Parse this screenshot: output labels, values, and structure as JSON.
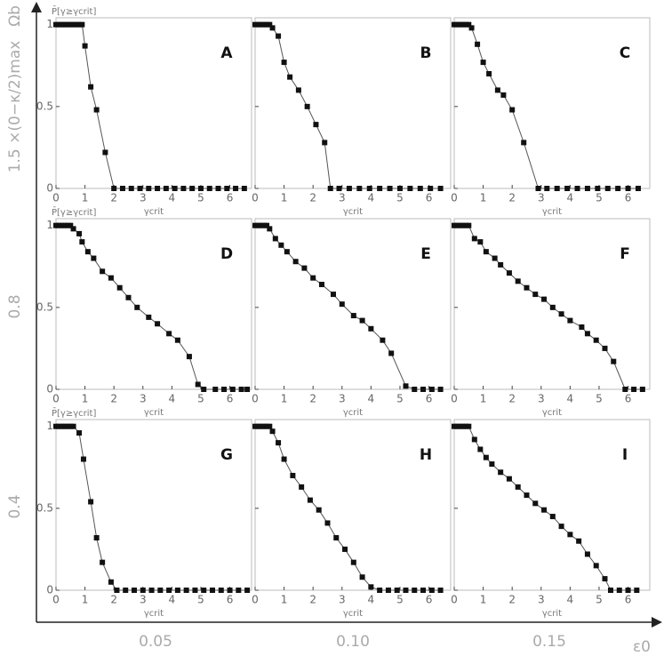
{
  "figure": {
    "y_label": "Ωb",
    "x_label": "ε0",
    "row_labels": [
      "1.5 ×(0−κ/2)max",
      "0.8",
      "0.4"
    ],
    "column_labels": [
      "0.05",
      "0.10",
      "0.15"
    ]
  },
  "chart_data": [
    {
      "type": "line",
      "label": "A",
      "y_label": "P̄[γ≥γcrit]",
      "x_label": "γcrit",
      "color": "#111111",
      "x": [
        0,
        0.1,
        0.2,
        0.3,
        0.4,
        0.5,
        0.6,
        0.7,
        0.8,
        0.9,
        1.0,
        1.2,
        1.4,
        1.7,
        2.0,
        2.3,
        2.6,
        2.9,
        3.2,
        3.5,
        3.8,
        4.1,
        4.4,
        4.7,
        5.0,
        5.3,
        5.6,
        5.9,
        6.2,
        6.5
      ],
      "values": [
        1,
        1,
        1,
        1,
        1,
        1,
        1,
        1,
        1,
        1,
        0.87,
        0.62,
        0.48,
        0.22,
        0,
        0,
        0,
        0,
        0,
        0,
        0,
        0,
        0,
        0,
        0,
        0,
        0,
        0,
        0,
        0
      ],
      "xlim": [
        0,
        6.75
      ],
      "ylim": [
        0,
        1.02
      ],
      "xticks": [
        0,
        1,
        2,
        3,
        4,
        5,
        6
      ],
      "yticks": [
        0,
        0.5,
        1
      ]
    },
    {
      "type": "line",
      "label": "B",
      "x_label": "γcrit",
      "color": "#111111",
      "x": [
        0,
        0.1,
        0.2,
        0.3,
        0.4,
        0.5,
        0.6,
        0.8,
        1.0,
        1.2,
        1.5,
        1.8,
        2.1,
        2.4,
        2.6,
        2.9,
        3.25,
        3.6,
        3.95,
        4.3,
        4.65,
        5.0,
        5.35,
        5.7,
        6.05,
        6.4
      ],
      "values": [
        1,
        1,
        1,
        1,
        1,
        1,
        0.98,
        0.93,
        0.77,
        0.68,
        0.6,
        0.5,
        0.39,
        0.28,
        0,
        0,
        0,
        0,
        0,
        0,
        0,
        0,
        0,
        0,
        0,
        0
      ],
      "xlim": [
        0,
        6.75
      ],
      "ylim": [
        0,
        1.02
      ],
      "xticks": [
        0,
        1,
        2,
        3,
        4,
        5,
        6
      ],
      "yticks": [
        0,
        0.5,
        1
      ]
    },
    {
      "type": "line",
      "label": "C",
      "x_label": "γcrit",
      "color": "#111111",
      "x": [
        0,
        0.1,
        0.2,
        0.3,
        0.4,
        0.5,
        0.6,
        0.8,
        1.0,
        1.2,
        1.5,
        1.7,
        2.0,
        2.4,
        2.9,
        3.2,
        3.55,
        3.9,
        4.25,
        4.6,
        4.95,
        5.3,
        5.65,
        6.0,
        6.35
      ],
      "values": [
        1,
        1,
        1,
        1,
        1,
        1,
        0.98,
        0.88,
        0.77,
        0.7,
        0.6,
        0.57,
        0.48,
        0.28,
        0,
        0,
        0,
        0,
        0,
        0,
        0,
        0,
        0,
        0,
        0
      ],
      "xlim": [
        0,
        6.75
      ],
      "ylim": [
        0,
        1.02
      ],
      "xticks": [
        0,
        1,
        2,
        3,
        4,
        5,
        6
      ],
      "yticks": [
        0,
        0.5,
        1
      ]
    },
    {
      "type": "line",
      "label": "D",
      "y_label": "P̄[γ≥γcrit]",
      "x_label": "γcrit",
      "color": "#111111",
      "x": [
        0,
        0.1,
        0.2,
        0.3,
        0.4,
        0.5,
        0.6,
        0.8,
        0.9,
        1.1,
        1.3,
        1.6,
        1.9,
        2.2,
        2.5,
        2.8,
        3.2,
        3.5,
        3.9,
        4.2,
        4.6,
        4.9,
        5.1,
        5.5,
        5.8,
        6.1,
        6.4,
        6.6
      ],
      "values": [
        1,
        1,
        1,
        1,
        1,
        1,
        0.98,
        0.95,
        0.9,
        0.84,
        0.8,
        0.72,
        0.68,
        0.62,
        0.56,
        0.5,
        0.44,
        0.4,
        0.34,
        0.3,
        0.2,
        0.03,
        0,
        0,
        0,
        0,
        0,
        0
      ],
      "xlim": [
        0,
        6.75
      ],
      "ylim": [
        0,
        1.02
      ],
      "xticks": [
        0,
        1,
        2,
        3,
        4,
        5,
        6
      ],
      "yticks": [
        0,
        0.5,
        1
      ]
    },
    {
      "type": "line",
      "label": "E",
      "x_label": "γcrit",
      "color": "#111111",
      "x": [
        0,
        0.1,
        0.2,
        0.3,
        0.4,
        0.5,
        0.7,
        0.9,
        1.1,
        1.4,
        1.7,
        2.0,
        2.3,
        2.7,
        3.0,
        3.4,
        3.7,
        4.0,
        4.4,
        4.7,
        5.2,
        5.5,
        5.8,
        6.1,
        6.4
      ],
      "values": [
        1,
        1,
        1,
        1,
        1,
        0.98,
        0.92,
        0.88,
        0.84,
        0.78,
        0.74,
        0.68,
        0.64,
        0.58,
        0.52,
        0.45,
        0.42,
        0.37,
        0.3,
        0.22,
        0.02,
        0,
        0,
        0,
        0
      ],
      "xlim": [
        0,
        6.75
      ],
      "ylim": [
        0,
        1.02
      ],
      "xticks": [
        0,
        1,
        2,
        3,
        4,
        5,
        6
      ],
      "yticks": [
        0,
        0.5,
        1
      ]
    },
    {
      "type": "line",
      "label": "F",
      "x_label": "γcrit",
      "color": "#111111",
      "x": [
        0,
        0.1,
        0.2,
        0.3,
        0.4,
        0.5,
        0.7,
        0.9,
        1.1,
        1.4,
        1.6,
        1.9,
        2.2,
        2.5,
        2.8,
        3.1,
        3.4,
        3.7,
        4.0,
        4.4,
        4.6,
        4.9,
        5.2,
        5.5,
        5.9,
        6.2,
        6.5
      ],
      "values": [
        1,
        1,
        1,
        1,
        1,
        1,
        0.92,
        0.9,
        0.84,
        0.8,
        0.76,
        0.71,
        0.66,
        0.62,
        0.58,
        0.55,
        0.5,
        0.46,
        0.42,
        0.38,
        0.34,
        0.3,
        0.25,
        0.17,
        0,
        0,
        0
      ],
      "xlim": [
        0,
        6.75
      ],
      "ylim": [
        0,
        1.02
      ],
      "xticks": [
        0,
        1,
        2,
        3,
        4,
        5,
        6
      ],
      "yticks": [
        0,
        0.5,
        1
      ]
    },
    {
      "type": "line",
      "label": "G",
      "y_label": "P̄[γ≥γcrit]",
      "x_label": "γcrit",
      "color": "#111111",
      "x": [
        0,
        0.1,
        0.2,
        0.3,
        0.4,
        0.5,
        0.6,
        0.8,
        0.95,
        1.2,
        1.4,
        1.6,
        1.9,
        2.1,
        2.4,
        2.7,
        3.0,
        3.3,
        3.6,
        3.9,
        4.2,
        4.5,
        4.8,
        5.1,
        5.4,
        5.7,
        6.0,
        6.3,
        6.6
      ],
      "values": [
        1,
        1,
        1,
        1,
        1,
        1,
        1,
        0.96,
        0.8,
        0.54,
        0.32,
        0.17,
        0.05,
        0,
        0,
        0,
        0,
        0,
        0,
        0,
        0,
        0,
        0,
        0,
        0,
        0,
        0,
        0,
        0
      ],
      "xlim": [
        0,
        6.75
      ],
      "ylim": [
        0,
        1.02
      ],
      "xticks": [
        0,
        1,
        2,
        3,
        4,
        5,
        6
      ],
      "yticks": [
        0,
        0.5,
        1
      ]
    },
    {
      "type": "line",
      "label": "H",
      "x_label": "γcrit",
      "color": "#111111",
      "x": [
        0,
        0.1,
        0.2,
        0.3,
        0.4,
        0.5,
        0.6,
        0.8,
        1.0,
        1.3,
        1.6,
        1.9,
        2.2,
        2.5,
        2.8,
        3.1,
        3.4,
        3.7,
        4.0,
        4.3,
        4.6,
        4.9,
        5.2,
        5.5,
        5.8,
        6.1,
        6.4
      ],
      "values": [
        1,
        1,
        1,
        1,
        1,
        1,
        0.97,
        0.9,
        0.8,
        0.7,
        0.63,
        0.55,
        0.49,
        0.41,
        0.32,
        0.25,
        0.17,
        0.08,
        0.02,
        0,
        0,
        0,
        0,
        0,
        0,
        0,
        0
      ],
      "xlim": [
        0,
        6.75
      ],
      "ylim": [
        0,
        1.02
      ],
      "xticks": [
        0,
        1,
        2,
        3,
        4,
        5,
        6
      ],
      "yticks": [
        0,
        0.5,
        1
      ]
    },
    {
      "type": "line",
      "label": "I",
      "x_label": "γcrit",
      "color": "#111111",
      "x": [
        0,
        0.1,
        0.2,
        0.3,
        0.4,
        0.5,
        0.7,
        0.9,
        1.1,
        1.3,
        1.6,
        1.9,
        2.2,
        2.5,
        2.8,
        3.1,
        3.4,
        3.7,
        4.0,
        4.3,
        4.6,
        4.9,
        5.2,
        5.4,
        5.7,
        6.0,
        6.3
      ],
      "values": [
        1,
        1,
        1,
        1,
        1,
        1,
        0.92,
        0.86,
        0.81,
        0.77,
        0.72,
        0.68,
        0.63,
        0.58,
        0.53,
        0.49,
        0.45,
        0.39,
        0.34,
        0.3,
        0.22,
        0.15,
        0.07,
        0,
        0,
        0,
        0
      ],
      "xlim": [
        0,
        6.75
      ],
      "ylim": [
        0,
        1.02
      ],
      "xticks": [
        0,
        1,
        2,
        3,
        4,
        5,
        6
      ],
      "yticks": [
        0,
        0.5,
        1
      ]
    }
  ]
}
